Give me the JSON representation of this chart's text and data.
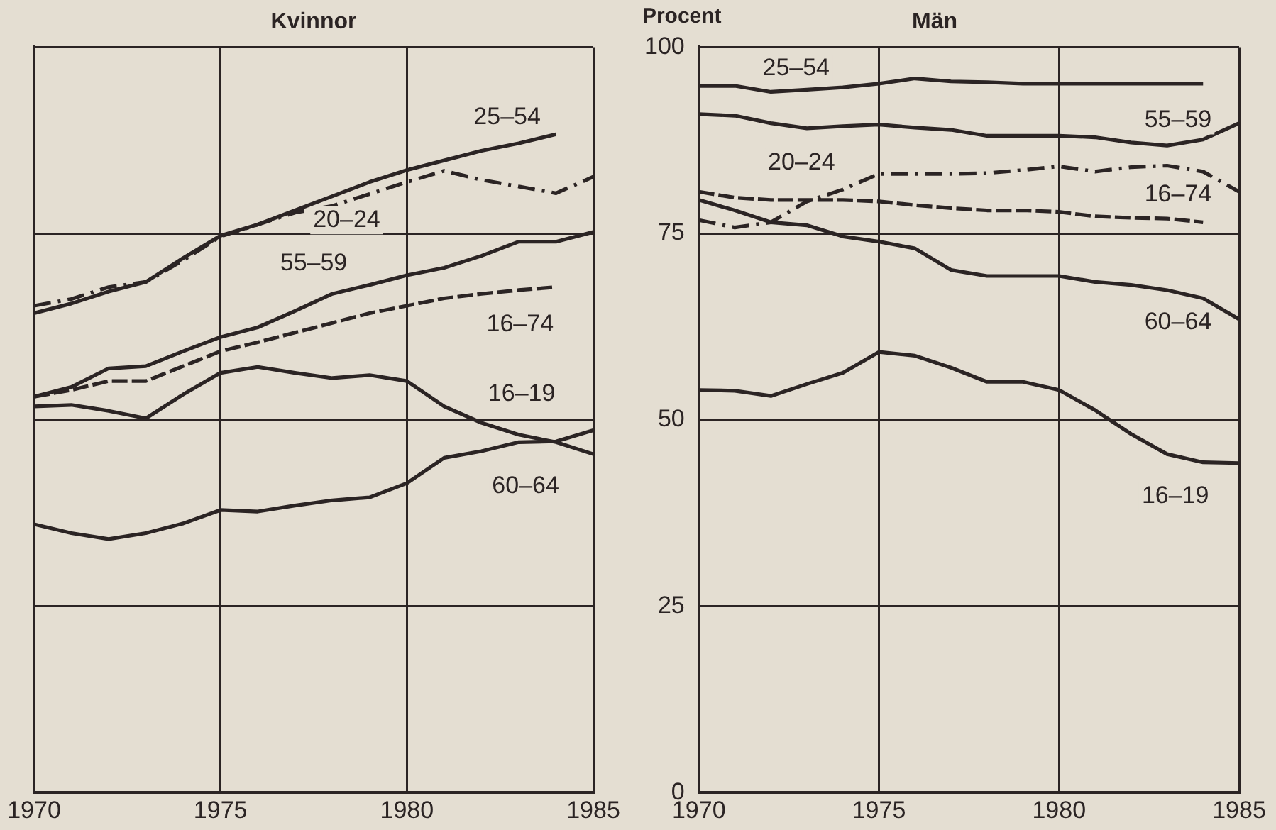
{
  "chart_data": [
    {
      "type": "line",
      "title": "Kvinnor",
      "x": [
        1970,
        1971,
        1972,
        1973,
        1974,
        1975,
        1976,
        1977,
        1978,
        1979,
        1980,
        1981,
        1982,
        1983,
        1984,
        1985
      ],
      "xlim": [
        1970,
        1985
      ],
      "xticks": [
        1970,
        1975,
        1980,
        1985
      ],
      "ylim": [
        0,
        100
      ],
      "yticks": [
        0,
        25,
        50,
        75,
        100
      ],
      "tick_labels": "x",
      "grid": true,
      "legend": false,
      "marker": "none",
      "series": [
        {
          "name": "25–54",
          "color": "#2b2424",
          "line_style": "solid",
          "values": [
            64.3,
            65.6,
            67.2,
            68.5,
            71.7,
            74.7,
            76.2,
            78.1,
            80,
            81.9,
            83.5,
            84.8,
            86.1,
            87.1,
            88.3,
            null
          ]
        },
        {
          "name": "20–24",
          "color": "#2b2424",
          "line_style": "dashdot",
          "values": [
            65.3,
            66.2,
            67.8,
            68.5,
            71.4,
            74.6,
            76.2,
            77.8,
            78.7,
            80.3,
            81.9,
            83.4,
            82.2,
            81.3,
            80.4,
            82.6
          ]
        },
        {
          "name": "55–59",
          "color": "#2b2424",
          "line_style": "solid",
          "values": [
            53.1,
            54.4,
            56.9,
            57.2,
            59.2,
            61.1,
            62.4,
            64.6,
            66.9,
            68.1,
            69.4,
            70.4,
            72,
            73.9,
            73.9,
            75.2
          ]
        },
        {
          "name": "16–74",
          "color": "#2b2424",
          "line_style": "dashed",
          "values": [
            53.1,
            54,
            55.2,
            55.2,
            57.2,
            59.2,
            60.4,
            61.7,
            63,
            64.3,
            65.3,
            66.3,
            66.9,
            67.4,
            67.8,
            null
          ]
        },
        {
          "name": "16–19",
          "color": "#2b2424",
          "line_style": "solid",
          "values": [
            51.8,
            52,
            51.2,
            50.2,
            53.4,
            56.3,
            57.1,
            56.3,
            55.6,
            56,
            55.2,
            51.8,
            49.6,
            48,
            47,
            45.4
          ]
        },
        {
          "name": "60–64",
          "color": "#2b2424",
          "line_style": "solid",
          "values": [
            36,
            34.8,
            34,
            34.8,
            36.1,
            37.9,
            37.7,
            38.5,
            39.2,
            39.6,
            41.5,
            44.9,
            45.8,
            47,
            47.1,
            48.6
          ]
        }
      ]
    },
    {
      "type": "line",
      "title": "Män",
      "ylabel": "Procent",
      "x": [
        1970,
        1971,
        1972,
        1973,
        1974,
        1975,
        1976,
        1977,
        1978,
        1979,
        1980,
        1981,
        1982,
        1983,
        1984,
        1985
      ],
      "xlim": [
        1970,
        1985
      ],
      "xticks": [
        1970,
        1975,
        1980,
        1985
      ],
      "ylim": [
        0,
        100
      ],
      "yticks": [
        0,
        25,
        50,
        75,
        100
      ],
      "grid": true,
      "legend": false,
      "marker": "none",
      "series": [
        {
          "name": "25–54",
          "color": "#2b2424",
          "line_style": "solid",
          "values": [
            94.8,
            94.8,
            94,
            94.3,
            94.6,
            95.1,
            95.8,
            95.4,
            95.3,
            95.1,
            95.1,
            95.1,
            95.1,
            95.1,
            95.1,
            null
          ]
        },
        {
          "name": "55–59",
          "color": "#2b2424",
          "line_style": "solid",
          "values": [
            91,
            90.8,
            89.8,
            89.1,
            89.4,
            89.6,
            89.2,
            88.9,
            88.1,
            88.1,
            88.1,
            87.9,
            87.2,
            86.8,
            87.6,
            89.8
          ]
        },
        {
          "name": "20–24",
          "color": "#2b2424",
          "line_style": "dashdot",
          "values": [
            76.8,
            75.8,
            76.5,
            79.3,
            80.9,
            83,
            83,
            83,
            83.1,
            83.5,
            84,
            83.3,
            83.9,
            84.1,
            83.3,
            80.6
          ]
        },
        {
          "name": "16–74",
          "color": "#2b2424",
          "line_style": "dashed",
          "values": [
            80.6,
            79.8,
            79.5,
            79.5,
            79.5,
            79.3,
            78.8,
            78.4,
            78.1,
            78.1,
            77.9,
            77.3,
            77.1,
            77,
            76.5,
            null
          ]
        },
        {
          "name": "60–64",
          "color": "#2b2424",
          "line_style": "solid",
          "values": [
            79.5,
            78.1,
            76.5,
            76.1,
            74.6,
            73.9,
            73,
            70.1,
            69.3,
            69.3,
            69.3,
            68.5,
            68.1,
            67.4,
            66.3,
            63.5
          ]
        },
        {
          "name": "16–19",
          "color": "#2b2424",
          "line_style": "solid",
          "values": [
            54,
            53.9,
            53.2,
            54.8,
            56.3,
            59.1,
            58.6,
            57,
            55.1,
            55.1,
            54,
            51.3,
            48.1,
            45.4,
            44.3,
            44.2
          ]
        }
      ]
    }
  ]
}
